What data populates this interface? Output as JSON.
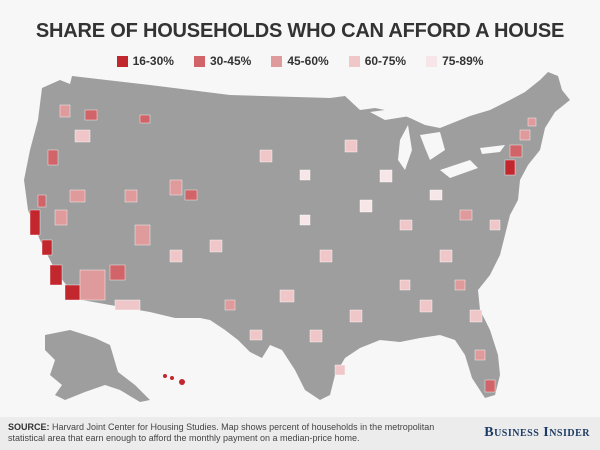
{
  "title": "SHARE OF HOUSEHOLDS WHO CAN AFFORD A HOUSE",
  "legend": [
    {
      "label": "16-30%",
      "color": "#c1272d"
    },
    {
      "label": "30-45%",
      "color": "#d06468"
    },
    {
      "label": "45-60%",
      "color": "#df9a9b"
    },
    {
      "label": "60-75%",
      "color": "#efc7c8"
    },
    {
      "label": "75-89%",
      "color": "#f7e6e7"
    }
  ],
  "map_base_color": "#9e9e9e",
  "footer": {
    "source_label": "SOURCE:",
    "source_text": " Harvard Joint Center for Housing Studies. Map shows percent of households in the metropolitan statistical area that earn enough to afford the monthly payment on a median-price home.",
    "brand": "Business Insider"
  }
}
